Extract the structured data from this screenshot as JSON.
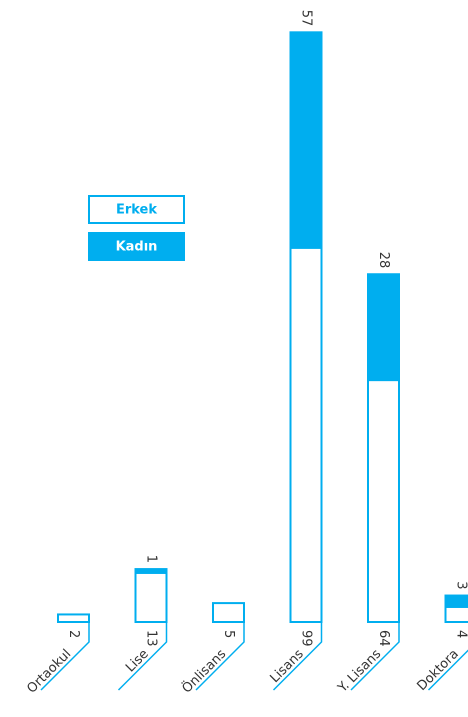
{
  "chart_data": {
    "type": "bar",
    "stacked": true,
    "categories": [
      "Ortaokul",
      "Lise",
      "Önlisans",
      "Lisans",
      "Y. Lisans",
      "Doktora"
    ],
    "edge_color": "#00aeef",
    "series": [
      {
        "name": "Erkek",
        "color": "#ffffff",
        "values": [
          2,
          13,
          5,
          99,
          64,
          4
        ]
      },
      {
        "name": "Kadın",
        "color": "#00aeef",
        "values": [
          null,
          1,
          null,
          57,
          28,
          3
        ]
      }
    ]
  }
}
